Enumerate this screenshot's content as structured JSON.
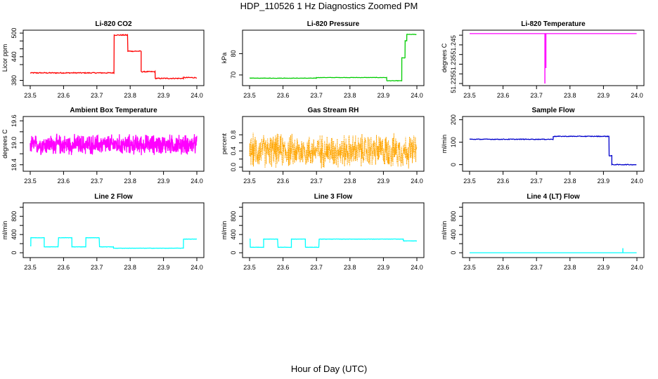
{
  "figure": {
    "title": "HDP_110526  1 Hz Diagnostics Zoomed PM",
    "xlabel": "Hour of Day (UTC)"
  },
  "chart_data": [
    {
      "type": "line",
      "title": "Li-820 CO2",
      "ylabel": "Licor ppm",
      "color": "#ff0000",
      "xlim": [
        23.5,
        24.0
      ],
      "ylim": [
        372,
        502
      ],
      "xticks": [
        "23.5",
        "23.6",
        "23.7",
        "23.8",
        "23.9",
        "24.0"
      ],
      "yticks": [
        380,
        440,
        500
      ],
      "yticks_minor": [
        420,
        460,
        480
      ],
      "yticks_labels": [
        "380",
        "440",
        "500"
      ],
      "ytick_rotated": true,
      "noise": 1.2,
      "segments": [
        [
          23.5,
          23.752,
          399
        ],
        [
          23.752,
          23.793,
          495
        ],
        [
          23.793,
          23.833,
          454
        ],
        [
          23.833,
          23.875,
          402
        ],
        [
          23.875,
          23.96,
          385
        ],
        [
          23.96,
          24.0,
          387
        ]
      ]
    },
    {
      "type": "line",
      "title": "Li-820 Pressure",
      "ylabel": "kPa",
      "color": "#00cc00",
      "xlim": [
        23.5,
        24.0
      ],
      "ylim": [
        66,
        90
      ],
      "xticks": [
        "23.5",
        "23.6",
        "23.7",
        "23.8",
        "23.9",
        "24.0"
      ],
      "yticks": [
        70,
        80
      ],
      "yticks_labels": [
        "70",
        "80"
      ],
      "ytick_rotated": true,
      "noise": 0.08,
      "segments": [
        [
          23.5,
          23.7,
          68.5
        ],
        [
          23.7,
          23.91,
          68.8
        ],
        [
          23.91,
          23.955,
          67.3
        ],
        [
          23.955,
          23.965,
          78
        ],
        [
          23.965,
          23.97,
          86
        ],
        [
          23.97,
          24.0,
          89
        ]
      ]
    },
    {
      "type": "line",
      "title": "Li-820 Temperature",
      "ylabel": "degrees C",
      "color": "#ff00ff",
      "xlim": [
        23.5,
        24.0
      ],
      "ylim": [
        51.225,
        51.2515
      ],
      "xticks": [
        "23.5",
        "23.6",
        "23.7",
        "23.8",
        "23.9",
        "24.0"
      ],
      "yticks": [
        51.225,
        51.235,
        51.245
      ],
      "yticks_minor": [
        51.23,
        51.24,
        51.25
      ],
      "yticks_labels": [
        "51.225",
        "51.235",
        "51.245"
      ],
      "ytick_rotated": true,
      "noise": 0.0,
      "segments": [
        [
          23.5,
          24.0,
          51.2508
        ]
      ],
      "spikes": [
        {
          "x": 23.725,
          "to": 51.225
        },
        {
          "x": 23.728,
          "to": 51.233
        }
      ]
    },
    {
      "type": "line",
      "title": "Ambient Box Temperature",
      "ylabel": "degrees C",
      "color": "#ff00ff",
      "xlim": [
        23.5,
        24.0
      ],
      "ylim": [
        18.28,
        19.66
      ],
      "xticks": [
        "23.5",
        "23.6",
        "23.7",
        "23.8",
        "23.9",
        "24.0"
      ],
      "yticks": [
        18.4,
        19.0,
        19.6
      ],
      "yticks_minor": [
        18.7,
        19.3
      ],
      "yticks_labels": [
        "18.4",
        "19.0",
        "19.6"
      ],
      "ytick_rotated": true,
      "noise": 0.28,
      "dense": true,
      "segments": [
        [
          23.5,
          24.0,
          18.95
        ]
      ]
    },
    {
      "type": "line",
      "title": "Gas Stream RH",
      "ylabel": "percent",
      "color": "#ffa500",
      "xlim": [
        23.5,
        24.0
      ],
      "ylim": [
        -0.05,
        1.2
      ],
      "xticks": [
        "23.5",
        "23.6",
        "23.7",
        "23.8",
        "23.9",
        "24.0"
      ],
      "yticks": [
        0.0,
        0.4,
        0.8
      ],
      "yticks_minor": [
        0.2,
        0.6
      ],
      "yticks_labels": [
        "0.0",
        "0.4",
        "0.8"
      ],
      "ytick_rotated": true,
      "noise": 0.42,
      "dense": true,
      "dotted": true,
      "segments": [
        [
          23.5,
          24.0,
          0.4
        ]
      ]
    },
    {
      "type": "line",
      "title": "Sample Flow",
      "ylabel": "ml/min",
      "color": "#0000cc",
      "xlim": [
        23.5,
        24.0
      ],
      "ylim": [
        -20,
        205
      ],
      "xticks": [
        "23.5",
        "23.6",
        "23.7",
        "23.8",
        "23.9",
        "24.0"
      ],
      "yticks": [
        0,
        100,
        200
      ],
      "yticks_labels": [
        "0",
        "100",
        "200"
      ],
      "ytick_rotated": true,
      "noise": 1.5,
      "segments": [
        [
          23.5,
          23.75,
          113
        ],
        [
          23.75,
          23.917,
          126
        ],
        [
          23.917,
          23.925,
          40
        ],
        [
          23.925,
          24.0,
          0
        ]
      ]
    },
    {
      "type": "line",
      "title": "Line 2 Flow",
      "ylabel": "ml/min",
      "color": "#00ffff",
      "xlim": [
        23.5,
        24.0
      ],
      "ylim": [
        -60,
        1050
      ],
      "xticks": [
        "23.5",
        "23.6",
        "23.7",
        "23.8",
        "23.9",
        "24.0"
      ],
      "yticks": [
        0,
        400,
        800
      ],
      "yticks_minor": [
        200,
        600,
        1000
      ],
      "yticks_labels": [
        "0",
        "400",
        "800"
      ],
      "ytick_rotated": true,
      "noise": 3,
      "segments": [
        [
          23.5,
          23.502,
          150
        ],
        [
          23.502,
          23.542,
          330
        ],
        [
          23.542,
          23.585,
          130
        ],
        [
          23.585,
          23.625,
          330
        ],
        [
          23.625,
          23.667,
          130
        ],
        [
          23.667,
          23.708,
          330
        ],
        [
          23.708,
          23.75,
          130
        ],
        [
          23.75,
          23.96,
          100
        ],
        [
          23.96,
          24.0,
          300
        ]
      ]
    },
    {
      "type": "line",
      "title": "Line 3 Flow",
      "ylabel": "ml/min",
      "color": "#00ffff",
      "xlim": [
        23.5,
        24.0
      ],
      "ylim": [
        -60,
        1050
      ],
      "xticks": [
        "23.5",
        "23.6",
        "23.7",
        "23.8",
        "23.9",
        "24.0"
      ],
      "yticks": [
        0,
        400,
        800
      ],
      "yticks_minor": [
        200,
        600,
        1000
      ],
      "yticks_labels": [
        "0",
        "400",
        "800"
      ],
      "ytick_rotated": true,
      "noise": 3,
      "segments": [
        [
          23.5,
          23.502,
          300
        ],
        [
          23.502,
          23.542,
          120
        ],
        [
          23.542,
          23.585,
          300
        ],
        [
          23.585,
          23.625,
          120
        ],
        [
          23.625,
          23.667,
          300
        ],
        [
          23.667,
          23.708,
          120
        ],
        [
          23.708,
          23.96,
          300
        ],
        [
          23.96,
          24.0,
          260
        ]
      ]
    },
    {
      "type": "line",
      "title": "Line 4 (LT) Flow",
      "ylabel": "ml/min",
      "color": "#00ffff",
      "xlim": [
        23.5,
        24.0
      ],
      "ylim": [
        -60,
        1050
      ],
      "xticks": [
        "23.5",
        "23.6",
        "23.7",
        "23.8",
        "23.9",
        "24.0"
      ],
      "yticks": [
        0,
        400,
        800
      ],
      "yticks_minor": [
        200,
        600,
        1000
      ],
      "yticks_labels": [
        "0",
        "400",
        "800"
      ],
      "ytick_rotated": true,
      "noise": 0,
      "segments": [
        [
          23.5,
          24.0,
          0
        ]
      ],
      "spikes": [
        {
          "x": 23.958,
          "to": 100
        }
      ]
    }
  ]
}
